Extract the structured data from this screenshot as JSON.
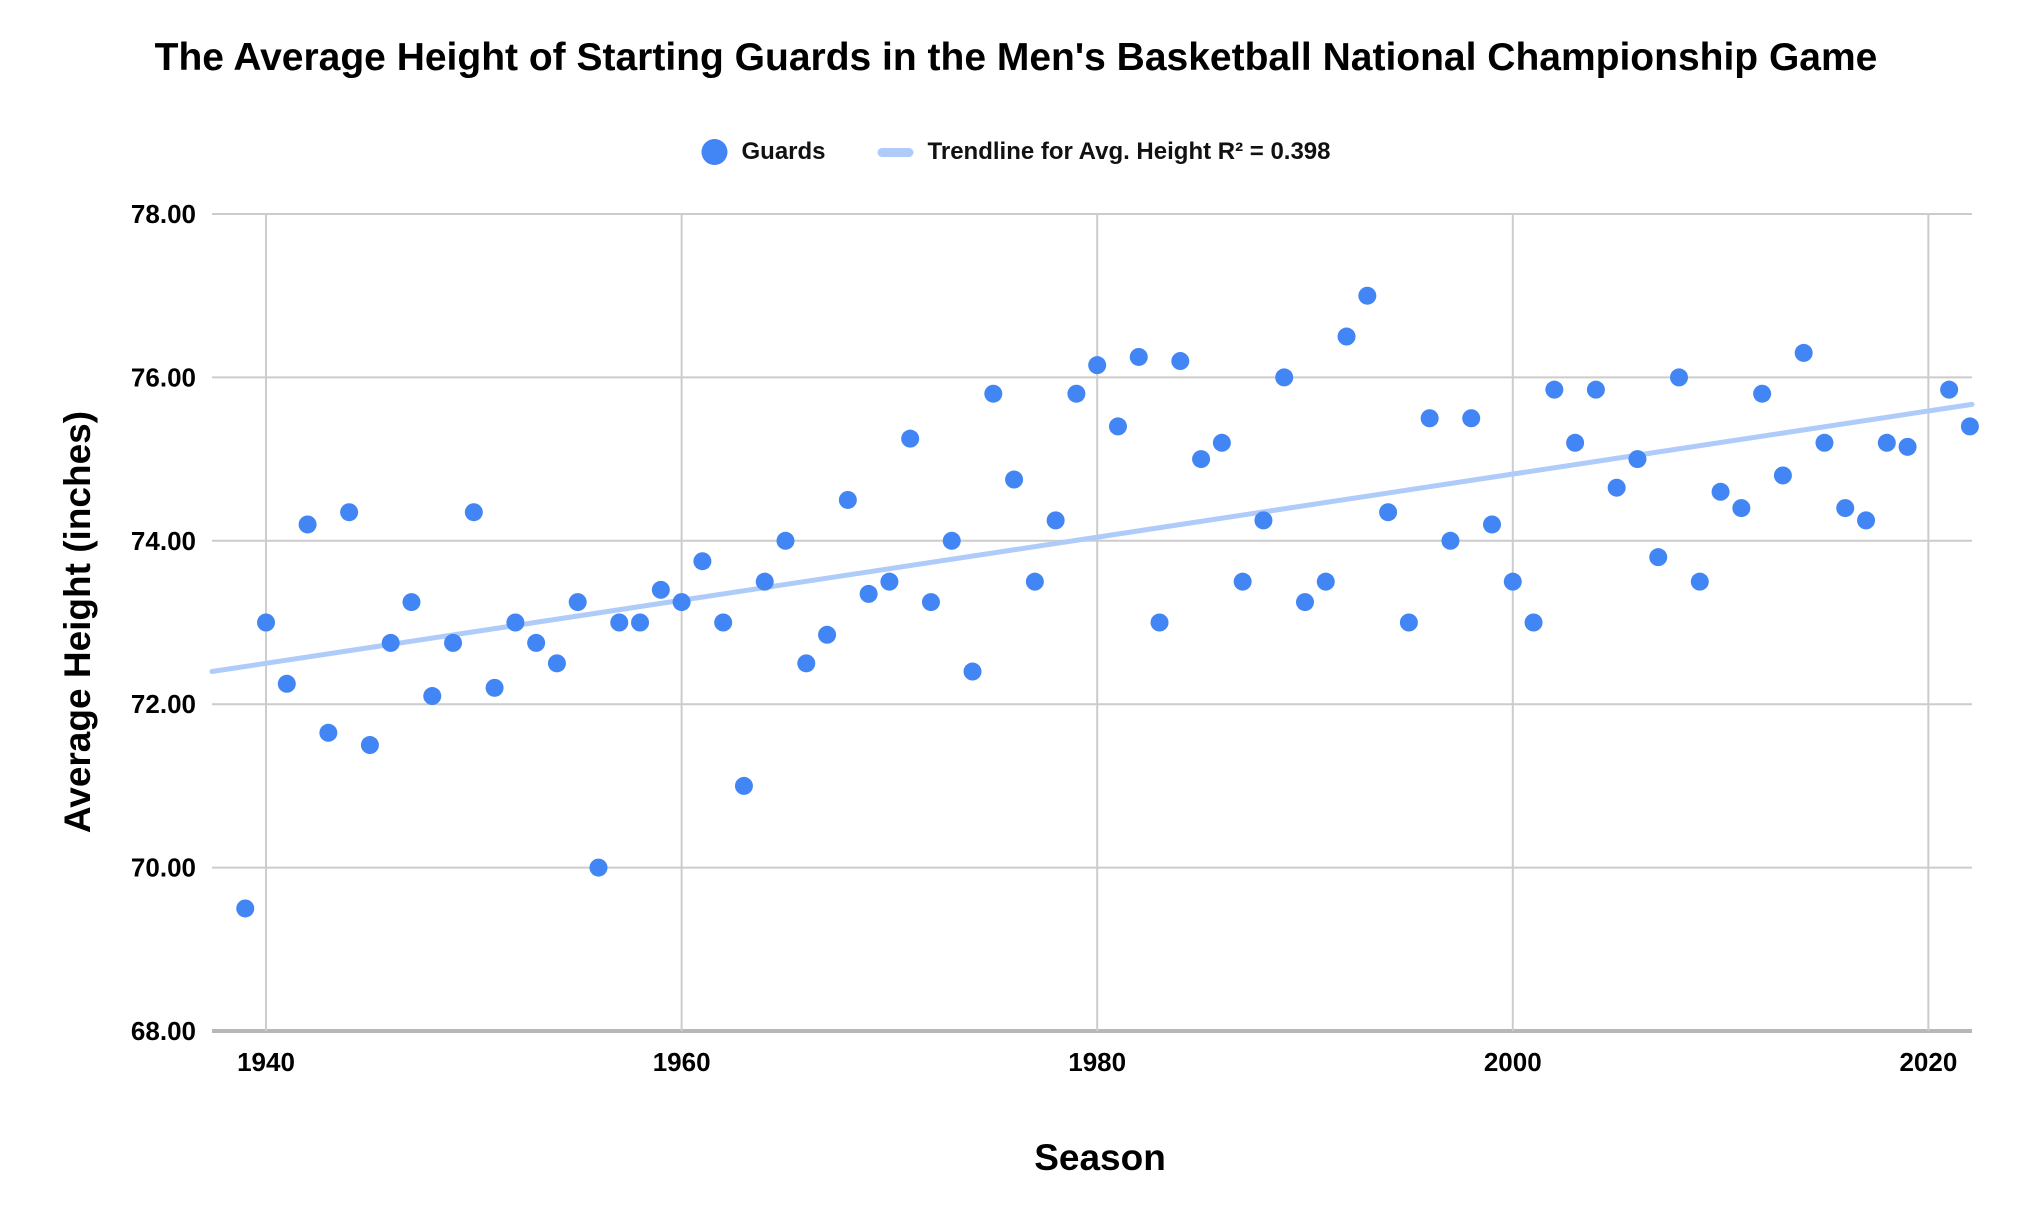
{
  "title": "The Average Height of Starting Guards in the Men's Basketball National Championship Game",
  "legend": {
    "guards_label": "Guards",
    "trendline_label": "Trendline for Avg. Height R² = 0.398"
  },
  "colors": {
    "point": "#4285F4",
    "trendline": "#AFCBFA",
    "gridline": "#CCCCCC",
    "baseline": "#B7B7B7",
    "text": "#000000"
  },
  "chart_data": {
    "type": "scatter",
    "title": "The Average Height of Starting Guards in the Men's Basketball National Championship Game",
    "xlabel": "Season",
    "ylabel": "Average Height (inches)",
    "xlim": [
      1937.4,
      2022.1
    ],
    "ylim": [
      68,
      78
    ],
    "grid": true,
    "legend_position": "top",
    "x_ticks": [
      {
        "value": 1940,
        "label": "1940"
      },
      {
        "value": 1960,
        "label": "1960"
      },
      {
        "value": 1980,
        "label": "1980"
      },
      {
        "value": 2000,
        "label": "2000"
      },
      {
        "value": 2020,
        "label": "2020"
      }
    ],
    "y_ticks": [
      {
        "value": 68,
        "label": "68.00"
      },
      {
        "value": 70,
        "label": "70.00"
      },
      {
        "value": 72,
        "label": "72.00"
      },
      {
        "value": 74,
        "label": "74.00"
      },
      {
        "value": 76,
        "label": "76.00"
      },
      {
        "value": 78,
        "label": "78.00"
      }
    ],
    "series": [
      {
        "name": "Guards",
        "points": [
          [
            1939,
            69.5
          ],
          [
            1940,
            73.0
          ],
          [
            1941,
            72.25
          ],
          [
            1942,
            74.2
          ],
          [
            1943,
            71.65
          ],
          [
            1944,
            74.35
          ],
          [
            1945,
            71.5
          ],
          [
            1946,
            72.75
          ],
          [
            1947,
            73.25
          ],
          [
            1948,
            72.1
          ],
          [
            1949,
            72.75
          ],
          [
            1950,
            74.35
          ],
          [
            1951,
            72.2
          ],
          [
            1952,
            73.0
          ],
          [
            1953,
            72.75
          ],
          [
            1954,
            72.5
          ],
          [
            1955,
            73.25
          ],
          [
            1956,
            70.0
          ],
          [
            1957,
            73.0
          ],
          [
            1958,
            73.0
          ],
          [
            1959,
            73.4
          ],
          [
            1960,
            73.25
          ],
          [
            1961,
            73.75
          ],
          [
            1962,
            73.0
          ],
          [
            1963,
            71.0
          ],
          [
            1964,
            73.5
          ],
          [
            1965,
            74.0
          ],
          [
            1966,
            72.5
          ],
          [
            1967,
            72.85
          ],
          [
            1968,
            74.5
          ],
          [
            1969,
            73.35
          ],
          [
            1970,
            73.5
          ],
          [
            1971,
            75.25
          ],
          [
            1972,
            73.25
          ],
          [
            1973,
            74.0
          ],
          [
            1974,
            72.4
          ],
          [
            1975,
            75.8
          ],
          [
            1976,
            74.75
          ],
          [
            1977,
            73.5
          ],
          [
            1978,
            74.25
          ],
          [
            1979,
            75.8
          ],
          [
            1980,
            76.15
          ],
          [
            1981,
            75.4
          ],
          [
            1982,
            76.25
          ],
          [
            1983,
            73.0
          ],
          [
            1984,
            76.2
          ],
          [
            1985,
            75.0
          ],
          [
            1986,
            75.2
          ],
          [
            1987,
            73.5
          ],
          [
            1988,
            74.25
          ],
          [
            1989,
            76.0
          ],
          [
            1990,
            73.25
          ],
          [
            1991,
            73.5
          ],
          [
            1992,
            76.5
          ],
          [
            1993,
            77.0
          ],
          [
            1994,
            74.35
          ],
          [
            1995,
            73.0
          ],
          [
            1996,
            75.5
          ],
          [
            1997,
            74.0
          ],
          [
            1998,
            75.5
          ],
          [
            1999,
            74.2
          ],
          [
            2000,
            73.5
          ],
          [
            2001,
            73.0
          ],
          [
            2002,
            75.85
          ],
          [
            2003,
            75.2
          ],
          [
            2004,
            75.85
          ],
          [
            2005,
            74.65
          ],
          [
            2006,
            75.0
          ],
          [
            2007,
            73.8
          ],
          [
            2008,
            76.0
          ],
          [
            2009,
            73.5
          ],
          [
            2010,
            74.6
          ],
          [
            2011,
            74.4
          ],
          [
            2012,
            75.8
          ],
          [
            2013,
            74.8
          ],
          [
            2014,
            76.3
          ],
          [
            2015,
            75.2
          ],
          [
            2016,
            74.4
          ],
          [
            2017,
            74.25
          ],
          [
            2018,
            75.2
          ],
          [
            2019,
            75.15
          ],
          [
            2021,
            75.85
          ],
          [
            2022,
            75.4
          ]
        ]
      }
    ],
    "trendline": {
      "label": "Trendline for Avg. Height",
      "r_squared": 0.398,
      "x1": 1937.4,
      "y1": 72.4,
      "x2": 2022.1,
      "y2": 75.67
    }
  }
}
